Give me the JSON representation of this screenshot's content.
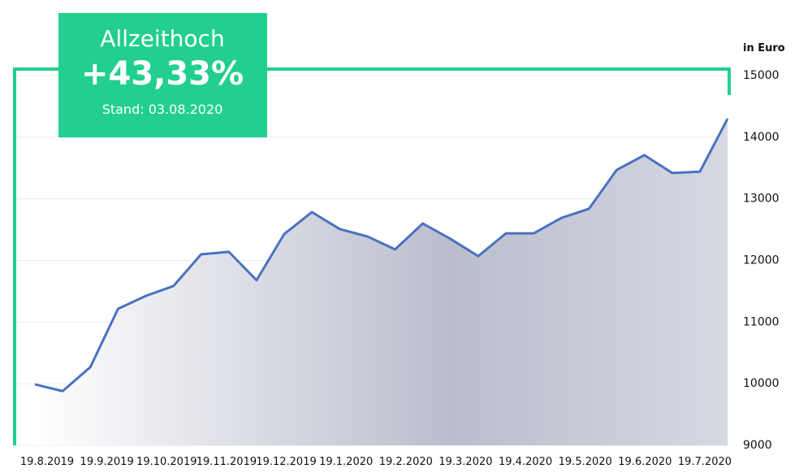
{
  "chart_data": {
    "type": "line",
    "badge": {
      "title": "Allzeithoch",
      "value": "+43,33%",
      "date": "Stand: 03.08.2020"
    },
    "y_label": "in Euro",
    "x_labels": [
      "19.8.2019",
      "19.9.2019",
      "19.10.2019",
      "19.11.2019",
      "19.12.2019",
      "19.1.2020",
      "19.2.2020",
      "19.3.2020",
      "19.4.2020",
      "19.5.2020",
      "19.6.2020",
      "19.7.2020"
    ],
    "values": [
      9990,
      9880,
      10270,
      11215,
      11425,
      11585,
      12100,
      12140,
      11680,
      12430,
      12785,
      12510,
      12390,
      12180,
      12600,
      12350,
      12070,
      12440,
      12440,
      12690,
      12840,
      13470,
      13710,
      13420,
      13440,
      14300
    ],
    "color": "#4a72c0",
    "frame_color": "#22cf8f",
    "ylim": [
      9000,
      15000
    ],
    "yticks": [
      9000,
      10000,
      11000,
      12000,
      13000,
      14000,
      15000
    ],
    "grid": true
  }
}
